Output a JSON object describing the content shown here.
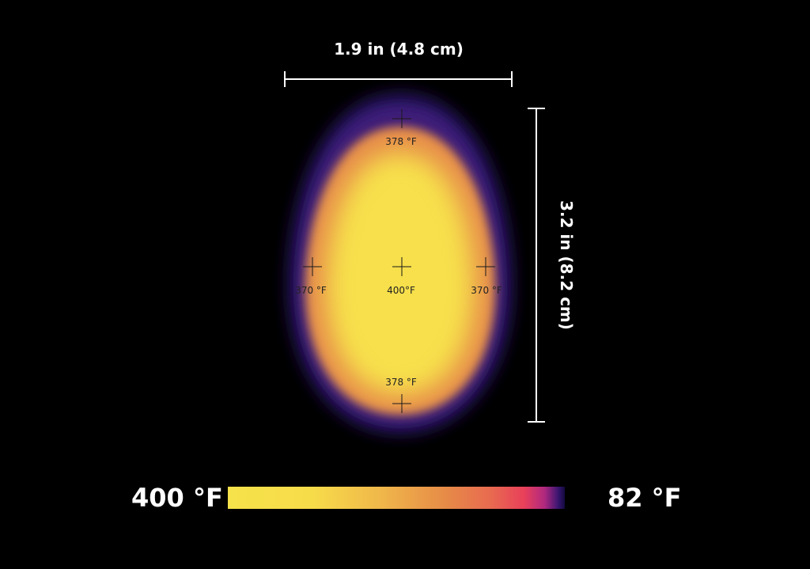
{
  "dimensions": {
    "width_label": "1.9 in (4.8 cm)",
    "height_label": "3.2 in (8.2 cm)"
  },
  "points": {
    "top": "378 °F",
    "left": "370 °F",
    "center": "400°F",
    "right": "370 °F",
    "bottom": "378 °F"
  },
  "scale": {
    "max_label": "400 °F",
    "min_label": "82 °F"
  },
  "colors": {
    "hot": "#f6e24a",
    "warm": "#e8a048",
    "edge": "#3a1670",
    "background": "#000000"
  }
}
